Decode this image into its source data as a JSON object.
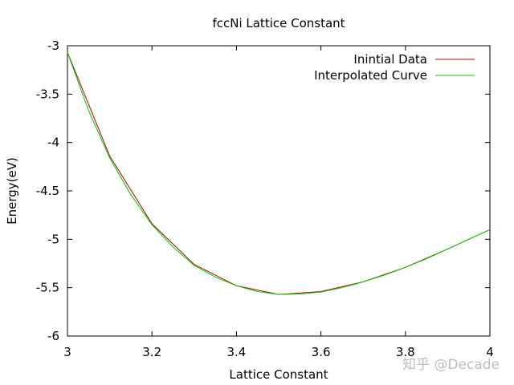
{
  "chart_data": {
    "type": "line",
    "title": "fccNi Lattice Constant",
    "xlabel": "Lattice Constant",
    "ylabel": "Energy(eV)",
    "xlim": [
      3,
      4
    ],
    "ylim": [
      -6,
      -3
    ],
    "x_ticks": [
      3,
      3.2,
      3.4,
      3.6,
      3.8,
      4
    ],
    "x_tick_labels": [
      "3",
      "3.2",
      "3.4",
      "3.6",
      "3.8",
      "4"
    ],
    "y_ticks": [
      -3,
      -3.5,
      -4,
      -4.5,
      -5,
      -5.5,
      -6
    ],
    "y_tick_labels": [
      "-3",
      "-3.5",
      "-4",
      "-4.5",
      "-5",
      "-5.5",
      "-6"
    ],
    "grid": false,
    "legend_position": "top-right",
    "series": [
      {
        "name": "Inintial Data",
        "color": "#c00000",
        "x": [
          3.0,
          3.1,
          3.2,
          3.3,
          3.4,
          3.5,
          3.6,
          3.7,
          3.8,
          3.9,
          4.0
        ],
        "y": [
          -3.07,
          -4.14,
          -4.84,
          -5.26,
          -5.48,
          -5.57,
          -5.54,
          -5.44,
          -5.29,
          -5.1,
          -4.9
        ]
      },
      {
        "name": "Interpolated Curve",
        "color": "#00cc00",
        "x": [
          3.0,
          3.05,
          3.1,
          3.15,
          3.2,
          3.25,
          3.3,
          3.35,
          3.4,
          3.45,
          3.5,
          3.55,
          3.6,
          3.65,
          3.7,
          3.75,
          3.8,
          3.85,
          3.9,
          3.95,
          4.0
        ],
        "y": [
          -3.07,
          -3.67,
          -4.16,
          -4.54,
          -4.85,
          -5.08,
          -5.27,
          -5.39,
          -5.48,
          -5.54,
          -5.57,
          -5.565,
          -5.545,
          -5.5,
          -5.44,
          -5.37,
          -5.29,
          -5.2,
          -5.1,
          -5.0,
          -4.9
        ]
      }
    ]
  },
  "watermark": "知乎 @Decade"
}
